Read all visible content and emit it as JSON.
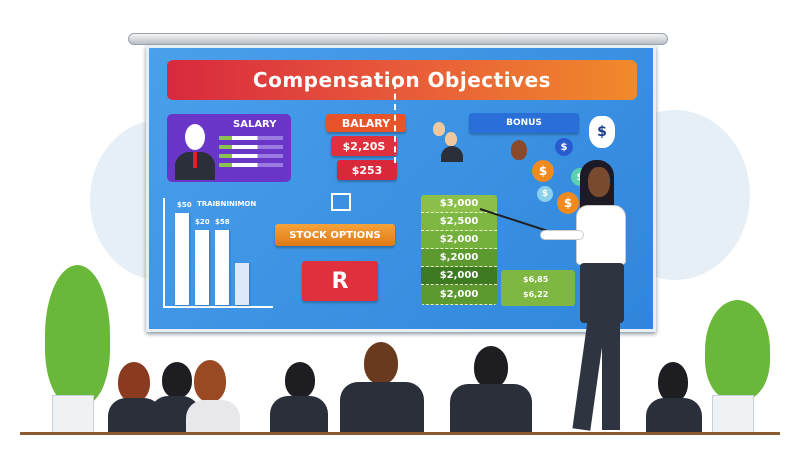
{
  "screen": {
    "title": "Compensation Objectives",
    "salary_card": {
      "label": "SALARY"
    },
    "red_stack": [
      "BALARY",
      "$2,20S",
      "$253"
    ],
    "training": {
      "label": "TRAIBNINIMON",
      "bar_labels": [
        "$50",
        "$20",
        "$58"
      ]
    },
    "stock_options": "STOCK OPTIONS",
    "r_button": "R",
    "bonus": "BONUS",
    "green_stack": [
      "$3,000",
      "$2,500",
      "$2,000",
      "$,2000",
      "$2,000",
      "$2,000"
    ],
    "small_green": [
      "$6,85",
      "$6,22"
    ],
    "coin_symbol": "$"
  },
  "colors": {
    "screen": "#3a90e2",
    "title_start": "#d8293e",
    "title_end": "#f08a2a",
    "salary": "#6a36c8",
    "red": "#e0303e",
    "orange": "#f08a1e",
    "green": "#6aa83a"
  }
}
